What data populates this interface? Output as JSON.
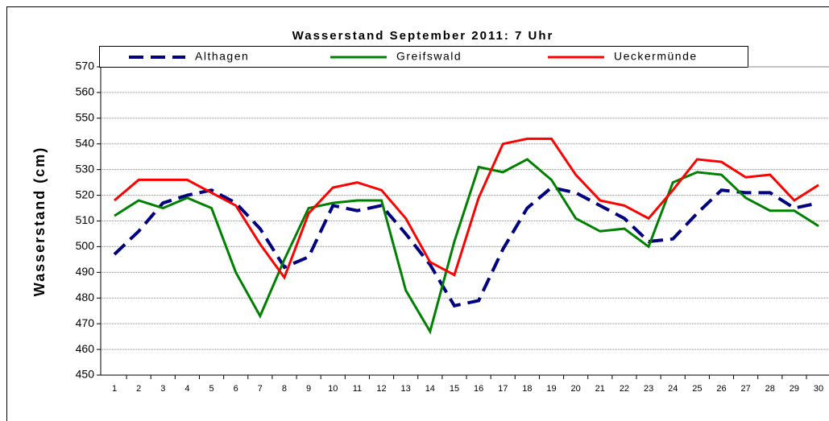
{
  "chart_data": {
    "type": "line",
    "title": "Wasserstand September 2011: 7 Uhr",
    "y_label": "Wasserstand (cm)",
    "categories": [
      "1",
      "2",
      "3",
      "4",
      "5",
      "6",
      "7",
      "8",
      "9",
      "10",
      "11",
      "12",
      "13",
      "14",
      "15",
      "16",
      "17",
      "18",
      "19",
      "20",
      "21",
      "22",
      "23",
      "24",
      "25",
      "26",
      "27",
      "28",
      "29",
      "30"
    ],
    "series": [
      {
        "name": "Althagen",
        "color": "#000080",
        "dash": true,
        "values": [
          497,
          506,
          517,
          520,
          522,
          517,
          507,
          492,
          496,
          516,
          514,
          516,
          505,
          493,
          477,
          479,
          499,
          515,
          523,
          521,
          516,
          511,
          502,
          503,
          513,
          522,
          521,
          521,
          515,
          517
        ]
      },
      {
        "name": "Greifswald",
        "color": "#008000",
        "values": [
          512,
          518,
          515,
          519,
          515,
          490,
          473,
          495,
          515,
          517,
          518,
          518,
          483,
          467,
          502,
          531,
          529,
          534,
          526,
          511,
          506,
          507,
          500,
          525,
          529,
          528,
          519,
          514,
          514,
          508
        ]
      },
      {
        "name": "Ueckermünde",
        "color": "#ff0000",
        "values": [
          518,
          526,
          526,
          526,
          521,
          516,
          501,
          488,
          513,
          523,
          525,
          522,
          511,
          494,
          489,
          519,
          540,
          542,
          542,
          528,
          518,
          516,
          511,
          522,
          534,
          533,
          527,
          528,
          518,
          524
        ]
      }
    ],
    "ylim": [
      450,
      570
    ],
    "yticks": [
      450,
      460,
      470,
      480,
      490,
      500,
      510,
      520,
      530,
      540,
      550,
      560,
      570
    ],
    "grid": true,
    "legend": "top"
  }
}
